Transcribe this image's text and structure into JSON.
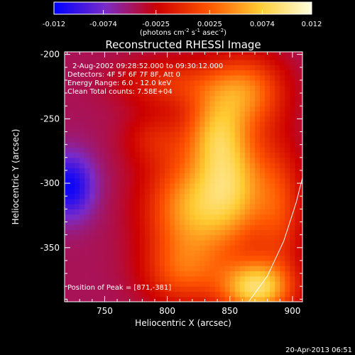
{
  "chart_data": {
    "type": "heatmap",
    "title": "Reconstructed RHESSI Image",
    "colorbar": {
      "ticks": [
        "-0.012",
        "-0.0074",
        "-0.0025",
        "0.0025",
        "0.0074",
        "0.012"
      ],
      "tick_values": [
        -0.012,
        -0.0074,
        -0.0025,
        0.0025,
        0.0074,
        0.012
      ],
      "range": [
        -0.012,
        0.012
      ],
      "label_prefix": "(photons cm",
      "label_exp1": "-2",
      "label_mid": " s",
      "label_exp2": "-1",
      "label_mid2": " asec",
      "label_exp3": "-2",
      "label_suffix": ")",
      "colors": [
        "#0000ff",
        "#7a2bc8",
        "#cc0000",
        "#ff5500",
        "#ffcc33",
        "#ffffe0"
      ]
    },
    "xlabel": "Heliocentric X (arcsec)",
    "ylabel": "Heliocentric Y (arcsec)",
    "xlim": [
      718,
      908
    ],
    "ylim": [
      -392,
      -198
    ],
    "xticks": [
      "750",
      "800",
      "850",
      "900"
    ],
    "xtick_values": [
      750,
      800,
      850,
      900
    ],
    "yticks": [
      "-200",
      "-250",
      "-300",
      "-350"
    ],
    "ytick_values": [
      -200,
      -250,
      -300,
      -350
    ],
    "annotations": [
      "2-Aug-2002 09:28:52.000 to 09:30:12.000",
      "Detectors: 4F 5F 6F 7F 8F, Att 0",
      "Energy Range: 6.0 - 12.0 keV",
      "Clean    Total counts: 7.58E+04"
    ],
    "peak_text": "Position of Peak = [871,-381]",
    "peak": [
      871,
      -381
    ],
    "limb_curve": [
      [
        865,
        -392
      ],
      [
        880,
        -372
      ],
      [
        893,
        -345
      ],
      [
        903,
        -315
      ],
      [
        910,
        -288
      ]
    ],
    "sources": [
      {
        "x": 820,
        "y": -320,
        "amp": 0.0098,
        "sx": 26,
        "sy": 30
      },
      {
        "x": 855,
        "y": -300,
        "amp": 0.0085,
        "sx": 20,
        "sy": 32
      },
      {
        "x": 838,
        "y": -260,
        "amp": 0.0072,
        "sx": 17,
        "sy": 22
      },
      {
        "x": 863,
        "y": -228,
        "amp": 0.0076,
        "sx": 22,
        "sy": 20
      },
      {
        "x": 871,
        "y": -381,
        "amp": 0.0125,
        "sx": 20,
        "sy": 15
      },
      {
        "x": 805,
        "y": -222,
        "amp": 0.0045,
        "sx": 30,
        "sy": 14
      },
      {
        "x": 790,
        "y": -265,
        "amp": 0.0032,
        "sx": 18,
        "sy": 15
      },
      {
        "x": 890,
        "y": -320,
        "amp": 0.005,
        "sx": 14,
        "sy": 35
      },
      {
        "x": 812,
        "y": -370,
        "amp": 0.0052,
        "sx": 22,
        "sy": 18
      }
    ],
    "background": -0.0045
  },
  "footer": {
    "timestamp": "20-Apr-2013 06:51"
  }
}
